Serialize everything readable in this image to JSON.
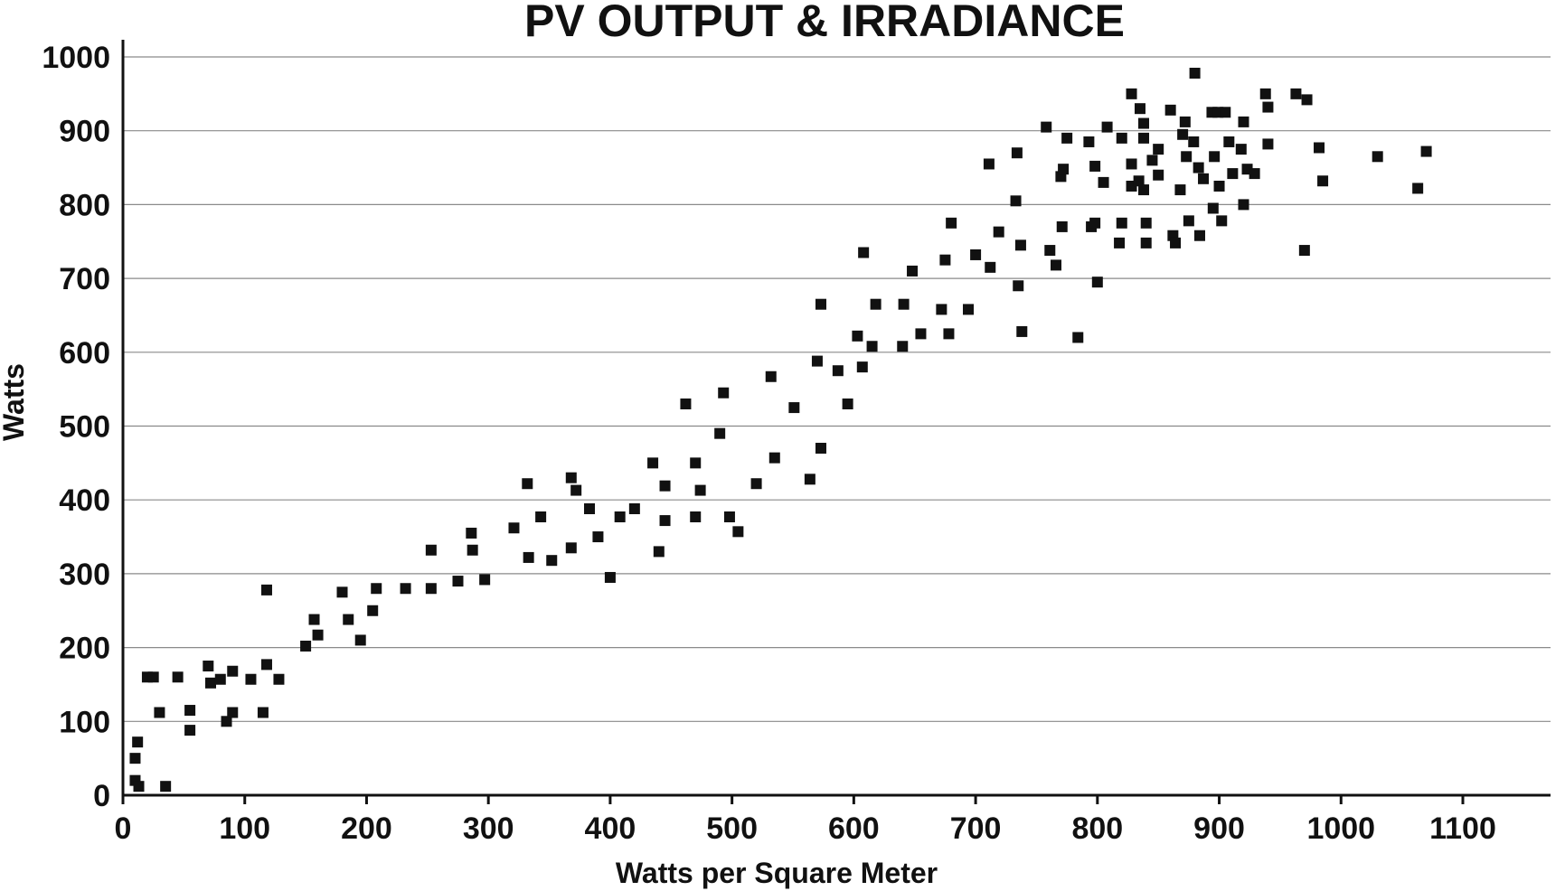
{
  "chart_data": {
    "type": "scatter",
    "title": "PV OUTPUT & IRRADIANCE",
    "xlabel": "Watts per Square Meter",
    "ylabel": "Watts",
    "xlim": [
      0,
      1170
    ],
    "ylim": [
      0,
      1000
    ],
    "xticks": [
      0,
      100,
      200,
      300,
      400,
      500,
      600,
      700,
      800,
      900,
      1000,
      1100
    ],
    "yticks": [
      0,
      100,
      200,
      300,
      400,
      500,
      600,
      700,
      800,
      900,
      1000
    ],
    "grid": "horizontal",
    "marker": "square",
    "marker_color": "#111111",
    "points": [
      [
        10,
        20
      ],
      [
        10,
        50
      ],
      [
        12,
        72
      ],
      [
        13,
        12
      ],
      [
        20,
        160
      ],
      [
        25,
        160
      ],
      [
        30,
        112
      ],
      [
        35,
        12
      ],
      [
        45,
        160
      ],
      [
        55,
        115
      ],
      [
        55,
        88
      ],
      [
        70,
        175
      ],
      [
        72,
        152
      ],
      [
        80,
        157
      ],
      [
        85,
        100
      ],
      [
        90,
        168
      ],
      [
        90,
        112
      ],
      [
        105,
        157
      ],
      [
        115,
        112
      ],
      [
        118,
        278
      ],
      [
        118,
        177
      ],
      [
        128,
        157
      ],
      [
        150,
        202
      ],
      [
        157,
        238
      ],
      [
        160,
        217
      ],
      [
        180,
        275
      ],
      [
        185,
        238
      ],
      [
        195,
        210
      ],
      [
        205,
        250
      ],
      [
        208,
        280
      ],
      [
        232,
        280
      ],
      [
        253,
        332
      ],
      [
        253,
        280
      ],
      [
        275,
        290
      ],
      [
        286,
        355
      ],
      [
        287,
        332
      ],
      [
        297,
        292
      ],
      [
        321,
        362
      ],
      [
        332,
        422
      ],
      [
        333,
        322
      ],
      [
        343,
        377
      ],
      [
        352,
        318
      ],
      [
        368,
        430
      ],
      [
        368,
        335
      ],
      [
        372,
        413
      ],
      [
        383,
        388
      ],
      [
        390,
        350
      ],
      [
        400,
        295
      ],
      [
        408,
        377
      ],
      [
        420,
        388
      ],
      [
        435,
        450
      ],
      [
        440,
        330
      ],
      [
        445,
        419
      ],
      [
        445,
        372
      ],
      [
        462,
        530
      ],
      [
        470,
        377
      ],
      [
        470,
        450
      ],
      [
        474,
        413
      ],
      [
        490,
        490
      ],
      [
        493,
        545
      ],
      [
        498,
        377
      ],
      [
        505,
        357
      ],
      [
        520,
        422
      ],
      [
        532,
        567
      ],
      [
        535,
        457
      ],
      [
        551,
        525
      ],
      [
        564,
        428
      ],
      [
        570,
        588
      ],
      [
        573,
        665
      ],
      [
        573,
        470
      ],
      [
        587,
        575
      ],
      [
        595,
        530
      ],
      [
        603,
        622
      ],
      [
        607,
        580
      ],
      [
        608,
        735
      ],
      [
        615,
        608
      ],
      [
        618,
        665
      ],
      [
        640,
        608
      ],
      [
        641,
        665
      ],
      [
        648,
        710
      ],
      [
        655,
        625
      ],
      [
        672,
        658
      ],
      [
        675,
        725
      ],
      [
        678,
        625
      ],
      [
        680,
        775
      ],
      [
        694,
        658
      ],
      [
        700,
        732
      ],
      [
        711,
        855
      ],
      [
        712,
        715
      ],
      [
        719,
        763
      ],
      [
        733,
        805
      ],
      [
        734,
        870
      ],
      [
        735,
        690
      ],
      [
        737,
        745
      ],
      [
        738,
        628
      ],
      [
        758,
        905
      ],
      [
        761,
        738
      ],
      [
        766,
        718
      ],
      [
        770,
        838
      ],
      [
        771,
        770
      ],
      [
        772,
        848
      ],
      [
        775,
        890
      ],
      [
        784,
        620
      ],
      [
        793,
        885
      ],
      [
        795,
        770
      ],
      [
        798,
        852
      ],
      [
        798,
        775
      ],
      [
        800,
        695
      ],
      [
        805,
        830
      ],
      [
        808,
        905
      ],
      [
        818,
        748
      ],
      [
        820,
        890
      ],
      [
        820,
        775
      ],
      [
        828,
        950
      ],
      [
        828,
        855
      ],
      [
        828,
        825
      ],
      [
        834,
        832
      ],
      [
        835,
        930
      ],
      [
        838,
        910
      ],
      [
        838,
        890
      ],
      [
        838,
        820
      ],
      [
        840,
        775
      ],
      [
        840,
        748
      ],
      [
        845,
        860
      ],
      [
        850,
        875
      ],
      [
        850,
        840
      ],
      [
        860,
        928
      ],
      [
        862,
        758
      ],
      [
        864,
        748
      ],
      [
        868,
        820
      ],
      [
        870,
        895
      ],
      [
        872,
        912
      ],
      [
        873,
        865
      ],
      [
        875,
        778
      ],
      [
        879,
        885
      ],
      [
        880,
        978
      ],
      [
        883,
        850
      ],
      [
        884,
        758
      ],
      [
        887,
        835
      ],
      [
        894,
        925
      ],
      [
        895,
        795
      ],
      [
        896,
        865
      ],
      [
        899,
        925
      ],
      [
        900,
        825
      ],
      [
        902,
        778
      ],
      [
        905,
        925
      ],
      [
        908,
        885
      ],
      [
        911,
        842
      ],
      [
        918,
        875
      ],
      [
        920,
        912
      ],
      [
        920,
        800
      ],
      [
        923,
        848
      ],
      [
        929,
        842
      ],
      [
        938,
        950
      ],
      [
        940,
        932
      ],
      [
        940,
        882
      ],
      [
        963,
        950
      ],
      [
        972,
        942
      ],
      [
        970,
        738
      ],
      [
        982,
        877
      ],
      [
        985,
        832
      ],
      [
        1030,
        865
      ],
      [
        1063,
        822
      ],
      [
        1070,
        872
      ]
    ]
  }
}
